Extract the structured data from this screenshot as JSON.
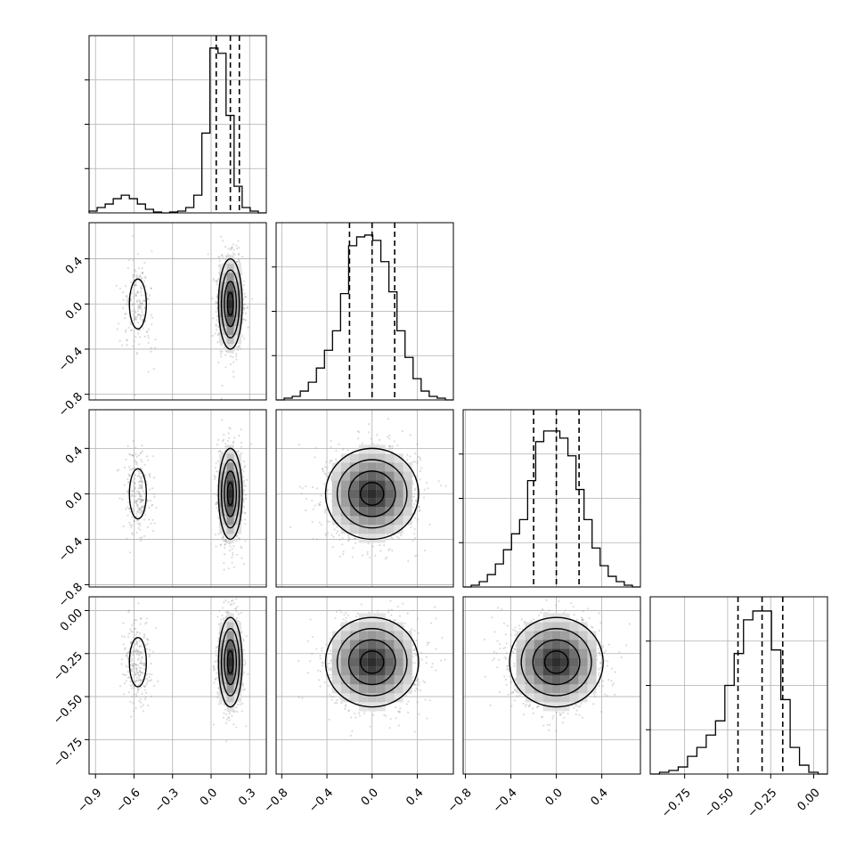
{
  "chart_data": {
    "type": "corner",
    "grid": true,
    "dims": [
      {
        "range": [
          -0.95,
          0.43
        ],
        "ticks": [
          -0.9,
          -0.6,
          -0.3,
          0.0,
          0.3
        ],
        "tick_labels": [
          "−0.9",
          "−0.6",
          "−0.3",
          "0.0",
          "0.3"
        ],
        "quantiles": [
          0.04,
          0.15,
          0.22
        ],
        "kde": "bimodal",
        "hist": [
          0.01,
          0.03,
          0.05,
          0.08,
          0.1,
          0.08,
          0.05,
          0.02,
          0.005,
          0.0,
          0.005,
          0.01,
          0.03,
          0.1,
          0.45,
          0.93,
          0.9,
          0.55,
          0.15,
          0.03,
          0.01,
          0.0
        ]
      },
      {
        "range": [
          -0.85,
          0.72
        ],
        "ticks": [
          -0.8,
          -0.4,
          0.0,
          0.4
        ],
        "tick_labels": [
          "−0.8",
          "−0.4",
          "0.0",
          "0.4"
        ],
        "quantiles": [
          -0.2,
          0.0,
          0.2
        ],
        "hist": [
          0.0,
          0.01,
          0.02,
          0.05,
          0.1,
          0.18,
          0.28,
          0.39,
          0.6,
          0.87,
          0.92,
          0.93,
          0.9,
          0.78,
          0.61,
          0.39,
          0.24,
          0.12,
          0.05,
          0.02,
          0.01,
          0.0
        ]
      },
      {
        "range": [
          -0.82,
          0.74
        ],
        "ticks": [
          -0.8,
          -0.4,
          0.0,
          0.4
        ],
        "tick_labels": [
          "−0.8",
          "−0.4",
          "0.0",
          "0.4"
        ],
        "quantiles": [
          -0.2,
          0.0,
          0.2
        ],
        "hist": [
          0.0,
          0.01,
          0.03,
          0.07,
          0.13,
          0.21,
          0.3,
          0.38,
          0.6,
          0.82,
          0.88,
          0.88,
          0.84,
          0.74,
          0.55,
          0.38,
          0.22,
          0.12,
          0.06,
          0.03,
          0.01,
          0.0
        ]
      },
      {
        "range": [
          -0.95,
          0.08
        ],
        "ticks": [
          -0.75,
          -0.5,
          -0.25,
          0.0
        ],
        "tick_labels": [
          "−0.75",
          "−0.50",
          "−0.25",
          "0.00"
        ],
        "quantiles": [
          -0.44,
          -0.3,
          -0.18
        ],
        "hist": [
          0.0,
          0.01,
          0.02,
          0.04,
          0.1,
          0.15,
          0.22,
          0.3,
          0.5,
          0.68,
          0.87,
          0.92,
          0.92,
          0.7,
          0.42,
          0.15,
          0.05,
          0.01,
          0.0
        ]
      }
    ],
    "hist_ticks_fraction": [
      0.25,
      0.5,
      0.75
    ]
  }
}
